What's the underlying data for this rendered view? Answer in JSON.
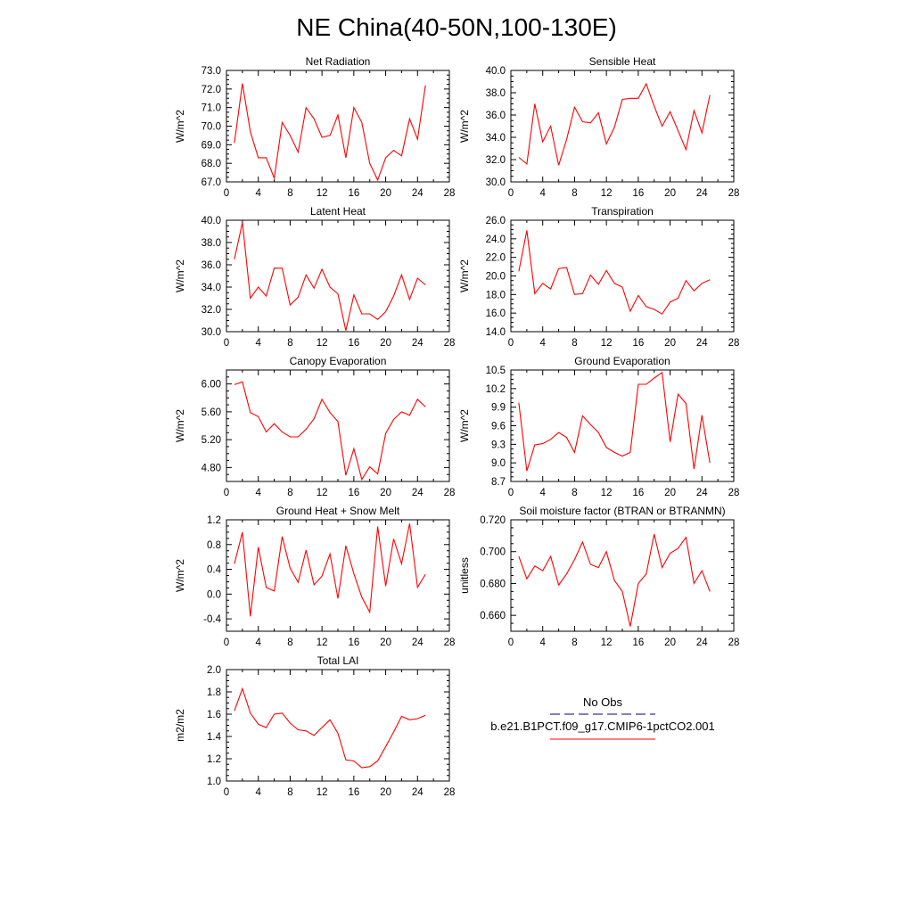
{
  "title": "NE China(40-50N,100-130E)",
  "colors": {
    "model": "#ff0000",
    "obs": "#00008b",
    "axis": "#000000"
  },
  "chart_data": [
    {
      "type": "line",
      "title": "Net Radiation",
      "ylabel": "W/m^2",
      "xlim": [
        0,
        28
      ],
      "xticks": [
        0,
        4,
        8,
        12,
        16,
        20,
        24,
        28
      ],
      "ylim": [
        67,
        73
      ],
      "yticks": [
        67,
        68,
        69,
        70,
        71,
        72,
        73
      ],
      "ytick_labels": [
        "67.0",
        "68.0",
        "69.0",
        "70.0",
        "71.0",
        "72.0",
        "73.0"
      ],
      "x": [
        1,
        2,
        3,
        4,
        5,
        6,
        7,
        8,
        9,
        10,
        11,
        12,
        13,
        14,
        15,
        16,
        17,
        18,
        19,
        20,
        21,
        22,
        23,
        24,
        25
      ],
      "series": [
        {
          "values": [
            69.1,
            72.3,
            69.7,
            68.3,
            68.3,
            67.2,
            70.2,
            69.5,
            68.6,
            71.0,
            70.4,
            69.4,
            69.5,
            70.6,
            68.3,
            71.0,
            70.2,
            68.0,
            67.1,
            68.3,
            68.7,
            68.4,
            70.4,
            69.3,
            72.2
          ]
        }
      ]
    },
    {
      "type": "line",
      "title": "Sensible Heat",
      "ylabel": "W/m^2",
      "xlim": [
        0,
        28
      ],
      "xticks": [
        0,
        4,
        8,
        12,
        16,
        20,
        24,
        28
      ],
      "ylim": [
        30,
        40
      ],
      "yticks": [
        30,
        32,
        34,
        36,
        38,
        40
      ],
      "ytick_labels": [
        "30.0",
        "32.0",
        "34.0",
        "36.0",
        "38.0",
        "40.0"
      ],
      "x": [
        1,
        2,
        3,
        4,
        5,
        6,
        7,
        8,
        9,
        10,
        11,
        12,
        13,
        14,
        15,
        16,
        17,
        18,
        19,
        20,
        21,
        22,
        23,
        24,
        25
      ],
      "series": [
        {
          "values": [
            32.2,
            31.6,
            37.0,
            33.6,
            35.0,
            31.5,
            33.8,
            36.7,
            35.4,
            35.3,
            36.2,
            33.4,
            34.9,
            37.4,
            37.5,
            37.5,
            38.8,
            36.8,
            35.0,
            36.3,
            34.6,
            32.9,
            36.4,
            34.4,
            37.8
          ]
        }
      ]
    },
    {
      "type": "line",
      "title": "Latent Heat",
      "ylabel": "W/m^2",
      "xlim": [
        0,
        28
      ],
      "xticks": [
        0,
        4,
        8,
        12,
        16,
        20,
        24,
        28
      ],
      "ylim": [
        30,
        40
      ],
      "yticks": [
        30,
        32,
        34,
        36,
        38,
        40
      ],
      "ytick_labels": [
        "30.0",
        "32.0",
        "34.0",
        "36.0",
        "38.0",
        "40.0"
      ],
      "x": [
        1,
        2,
        3,
        4,
        5,
        6,
        7,
        8,
        9,
        10,
        11,
        12,
        13,
        14,
        15,
        16,
        17,
        18,
        19,
        20,
        21,
        22,
        23,
        24,
        25
      ],
      "series": [
        {
          "values": [
            36.5,
            39.8,
            33.0,
            34.0,
            33.2,
            35.7,
            35.7,
            32.4,
            33.1,
            35.1,
            33.9,
            35.6,
            34.0,
            33.4,
            30.1,
            33.3,
            31.6,
            31.6,
            31.1,
            31.8,
            33.2,
            35.1,
            32.9,
            34.8,
            34.2
          ]
        }
      ]
    },
    {
      "type": "line",
      "title": "Transpiration",
      "ylabel": "W/m^2",
      "xlim": [
        0,
        28
      ],
      "xticks": [
        0,
        4,
        8,
        12,
        16,
        20,
        24,
        28
      ],
      "ylim": [
        14,
        26
      ],
      "yticks": [
        14,
        16,
        18,
        20,
        22,
        24,
        26
      ],
      "ytick_labels": [
        "14.0",
        "16.0",
        "18.0",
        "20.0",
        "22.0",
        "24.0",
        "26.0"
      ],
      "x": [
        1,
        2,
        3,
        4,
        5,
        6,
        7,
        8,
        9,
        10,
        11,
        12,
        13,
        14,
        15,
        16,
        17,
        18,
        19,
        20,
        21,
        22,
        23,
        24,
        25
      ],
      "series": [
        {
          "values": [
            20.5,
            24.9,
            18.1,
            19.2,
            18.6,
            20.8,
            20.9,
            18.0,
            18.1,
            20.1,
            19.1,
            20.6,
            19.2,
            18.8,
            16.2,
            17.9,
            16.7,
            16.4,
            15.9,
            17.2,
            17.6,
            19.5,
            18.4,
            19.2,
            19.6
          ]
        }
      ]
    },
    {
      "type": "line",
      "title": "Canopy Evaporation",
      "ylabel": "W/m^2",
      "xlim": [
        0,
        28
      ],
      "xticks": [
        0,
        4,
        8,
        12,
        16,
        20,
        24,
        28
      ],
      "ylim": [
        4.6,
        6.2
      ],
      "yticks": [
        4.8,
        5.2,
        5.6,
        6.0
      ],
      "ytick_labels": [
        "4.80",
        "5.20",
        "5.60",
        "6.00"
      ],
      "x": [
        1,
        2,
        3,
        4,
        5,
        6,
        7,
        8,
        9,
        10,
        11,
        12,
        13,
        14,
        15,
        16,
        17,
        18,
        19,
        20,
        21,
        22,
        23,
        24,
        25
      ],
      "series": [
        {
          "values": [
            5.99,
            6.03,
            5.59,
            5.53,
            5.31,
            5.43,
            5.31,
            5.24,
            5.24,
            5.35,
            5.5,
            5.78,
            5.59,
            5.46,
            4.69,
            5.07,
            4.63,
            4.81,
            4.71,
            5.29,
            5.49,
            5.6,
            5.55,
            5.78,
            5.67
          ]
        }
      ]
    },
    {
      "type": "line",
      "title": "Ground Evaporation",
      "ylabel": "W/m^2",
      "xlim": [
        0,
        28
      ],
      "xticks": [
        0,
        4,
        8,
        12,
        16,
        20,
        24,
        28
      ],
      "ylim": [
        8.7,
        10.5
      ],
      "yticks": [
        8.7,
        9.0,
        9.3,
        9.6,
        9.9,
        10.2,
        10.5
      ],
      "ytick_labels": [
        "8.7",
        "9.0",
        "9.3",
        "9.6",
        "9.9",
        "10.2",
        "10.5"
      ],
      "x": [
        1,
        2,
        3,
        4,
        5,
        6,
        7,
        8,
        9,
        10,
        11,
        12,
        13,
        14,
        15,
        16,
        17,
        18,
        19,
        20,
        21,
        22,
        23,
        24,
        25
      ],
      "series": [
        {
          "values": [
            9.97,
            8.87,
            9.29,
            9.31,
            9.38,
            9.49,
            9.41,
            9.17,
            9.76,
            9.62,
            9.49,
            9.25,
            9.17,
            9.11,
            9.17,
            10.27,
            10.27,
            10.37,
            10.46,
            9.34,
            10.11,
            9.96,
            8.9,
            9.77,
            9.0
          ]
        }
      ]
    },
    {
      "type": "line",
      "title": "Ground Heat + Snow Melt",
      "ylabel": "W/m^2",
      "xlim": [
        0,
        28
      ],
      "xticks": [
        0,
        4,
        8,
        12,
        16,
        20,
        24,
        28
      ],
      "ylim": [
        -0.6,
        1.2
      ],
      "yticks": [
        -0.4,
        0.0,
        0.4,
        0.8,
        1.2
      ],
      "ytick_labels": [
        "-0.4",
        "0.0",
        "0.4",
        "0.8",
        "1.2"
      ],
      "x": [
        1,
        2,
        3,
        4,
        5,
        6,
        7,
        8,
        9,
        10,
        11,
        12,
        13,
        14,
        15,
        16,
        17,
        18,
        19,
        20,
        21,
        22,
        23,
        24,
        25
      ],
      "series": [
        {
          "values": [
            0.49,
            1.0,
            -0.36,
            0.76,
            0.11,
            0.05,
            0.93,
            0.42,
            0.19,
            0.71,
            0.15,
            0.29,
            0.65,
            -0.07,
            0.78,
            0.33,
            -0.05,
            -0.29,
            1.09,
            0.13,
            0.89,
            0.49,
            1.14,
            0.11,
            0.32
          ]
        }
      ]
    },
    {
      "type": "line",
      "title": "Soil moisture factor (BTRAN or BTRANMN)",
      "ylabel": "unitless",
      "xlim": [
        0,
        28
      ],
      "xticks": [
        0,
        4,
        8,
        12,
        16,
        20,
        24,
        28
      ],
      "ylim": [
        0.65,
        0.72
      ],
      "yticks": [
        0.66,
        0.68,
        0.7,
        0.72
      ],
      "ytick_labels": [
        "0.660",
        "0.680",
        "0.700",
        "0.720"
      ],
      "x": [
        1,
        2,
        3,
        4,
        5,
        6,
        7,
        8,
        9,
        10,
        11,
        12,
        13,
        14,
        15,
        16,
        17,
        18,
        19,
        20,
        21,
        22,
        23,
        24,
        25
      ],
      "series": [
        {
          "values": [
            0.697,
            0.683,
            0.691,
            0.688,
            0.697,
            0.679,
            0.686,
            0.695,
            0.706,
            0.692,
            0.69,
            0.7,
            0.682,
            0.675,
            0.653,
            0.68,
            0.686,
            0.711,
            0.69,
            0.699,
            0.702,
            0.709,
            0.68,
            0.688,
            0.675
          ]
        }
      ]
    },
    {
      "type": "line",
      "title": "Total LAI",
      "ylabel": "m2/m2",
      "xlim": [
        0,
        28
      ],
      "xticks": [
        0,
        4,
        8,
        12,
        16,
        20,
        24,
        28
      ],
      "ylim": [
        1.0,
        2.0
      ],
      "yticks": [
        1.0,
        1.2,
        1.4,
        1.6,
        1.8,
        2.0
      ],
      "ytick_labels": [
        "1.0",
        "1.2",
        "1.4",
        "1.6",
        "1.8",
        "2.0"
      ],
      "x": [
        1,
        2,
        3,
        4,
        5,
        6,
        7,
        8,
        9,
        10,
        11,
        12,
        13,
        14,
        15,
        16,
        17,
        18,
        19,
        20,
        21,
        22,
        23,
        24,
        25
      ],
      "series": [
        {
          "values": [
            1.63,
            1.83,
            1.61,
            1.51,
            1.48,
            1.6,
            1.61,
            1.52,
            1.46,
            1.45,
            1.41,
            1.48,
            1.55,
            1.43,
            1.19,
            1.18,
            1.12,
            1.13,
            1.18,
            1.31,
            1.44,
            1.58,
            1.55,
            1.56,
            1.59
          ]
        }
      ]
    }
  ],
  "legend": [
    {
      "label": "No Obs",
      "style": "dashed",
      "color": "#00008b"
    },
    {
      "label": "b.e21.B1PCT.f09_g17.CMIP6-1pctCO2.001",
      "style": "solid",
      "color": "#ff0000"
    }
  ]
}
